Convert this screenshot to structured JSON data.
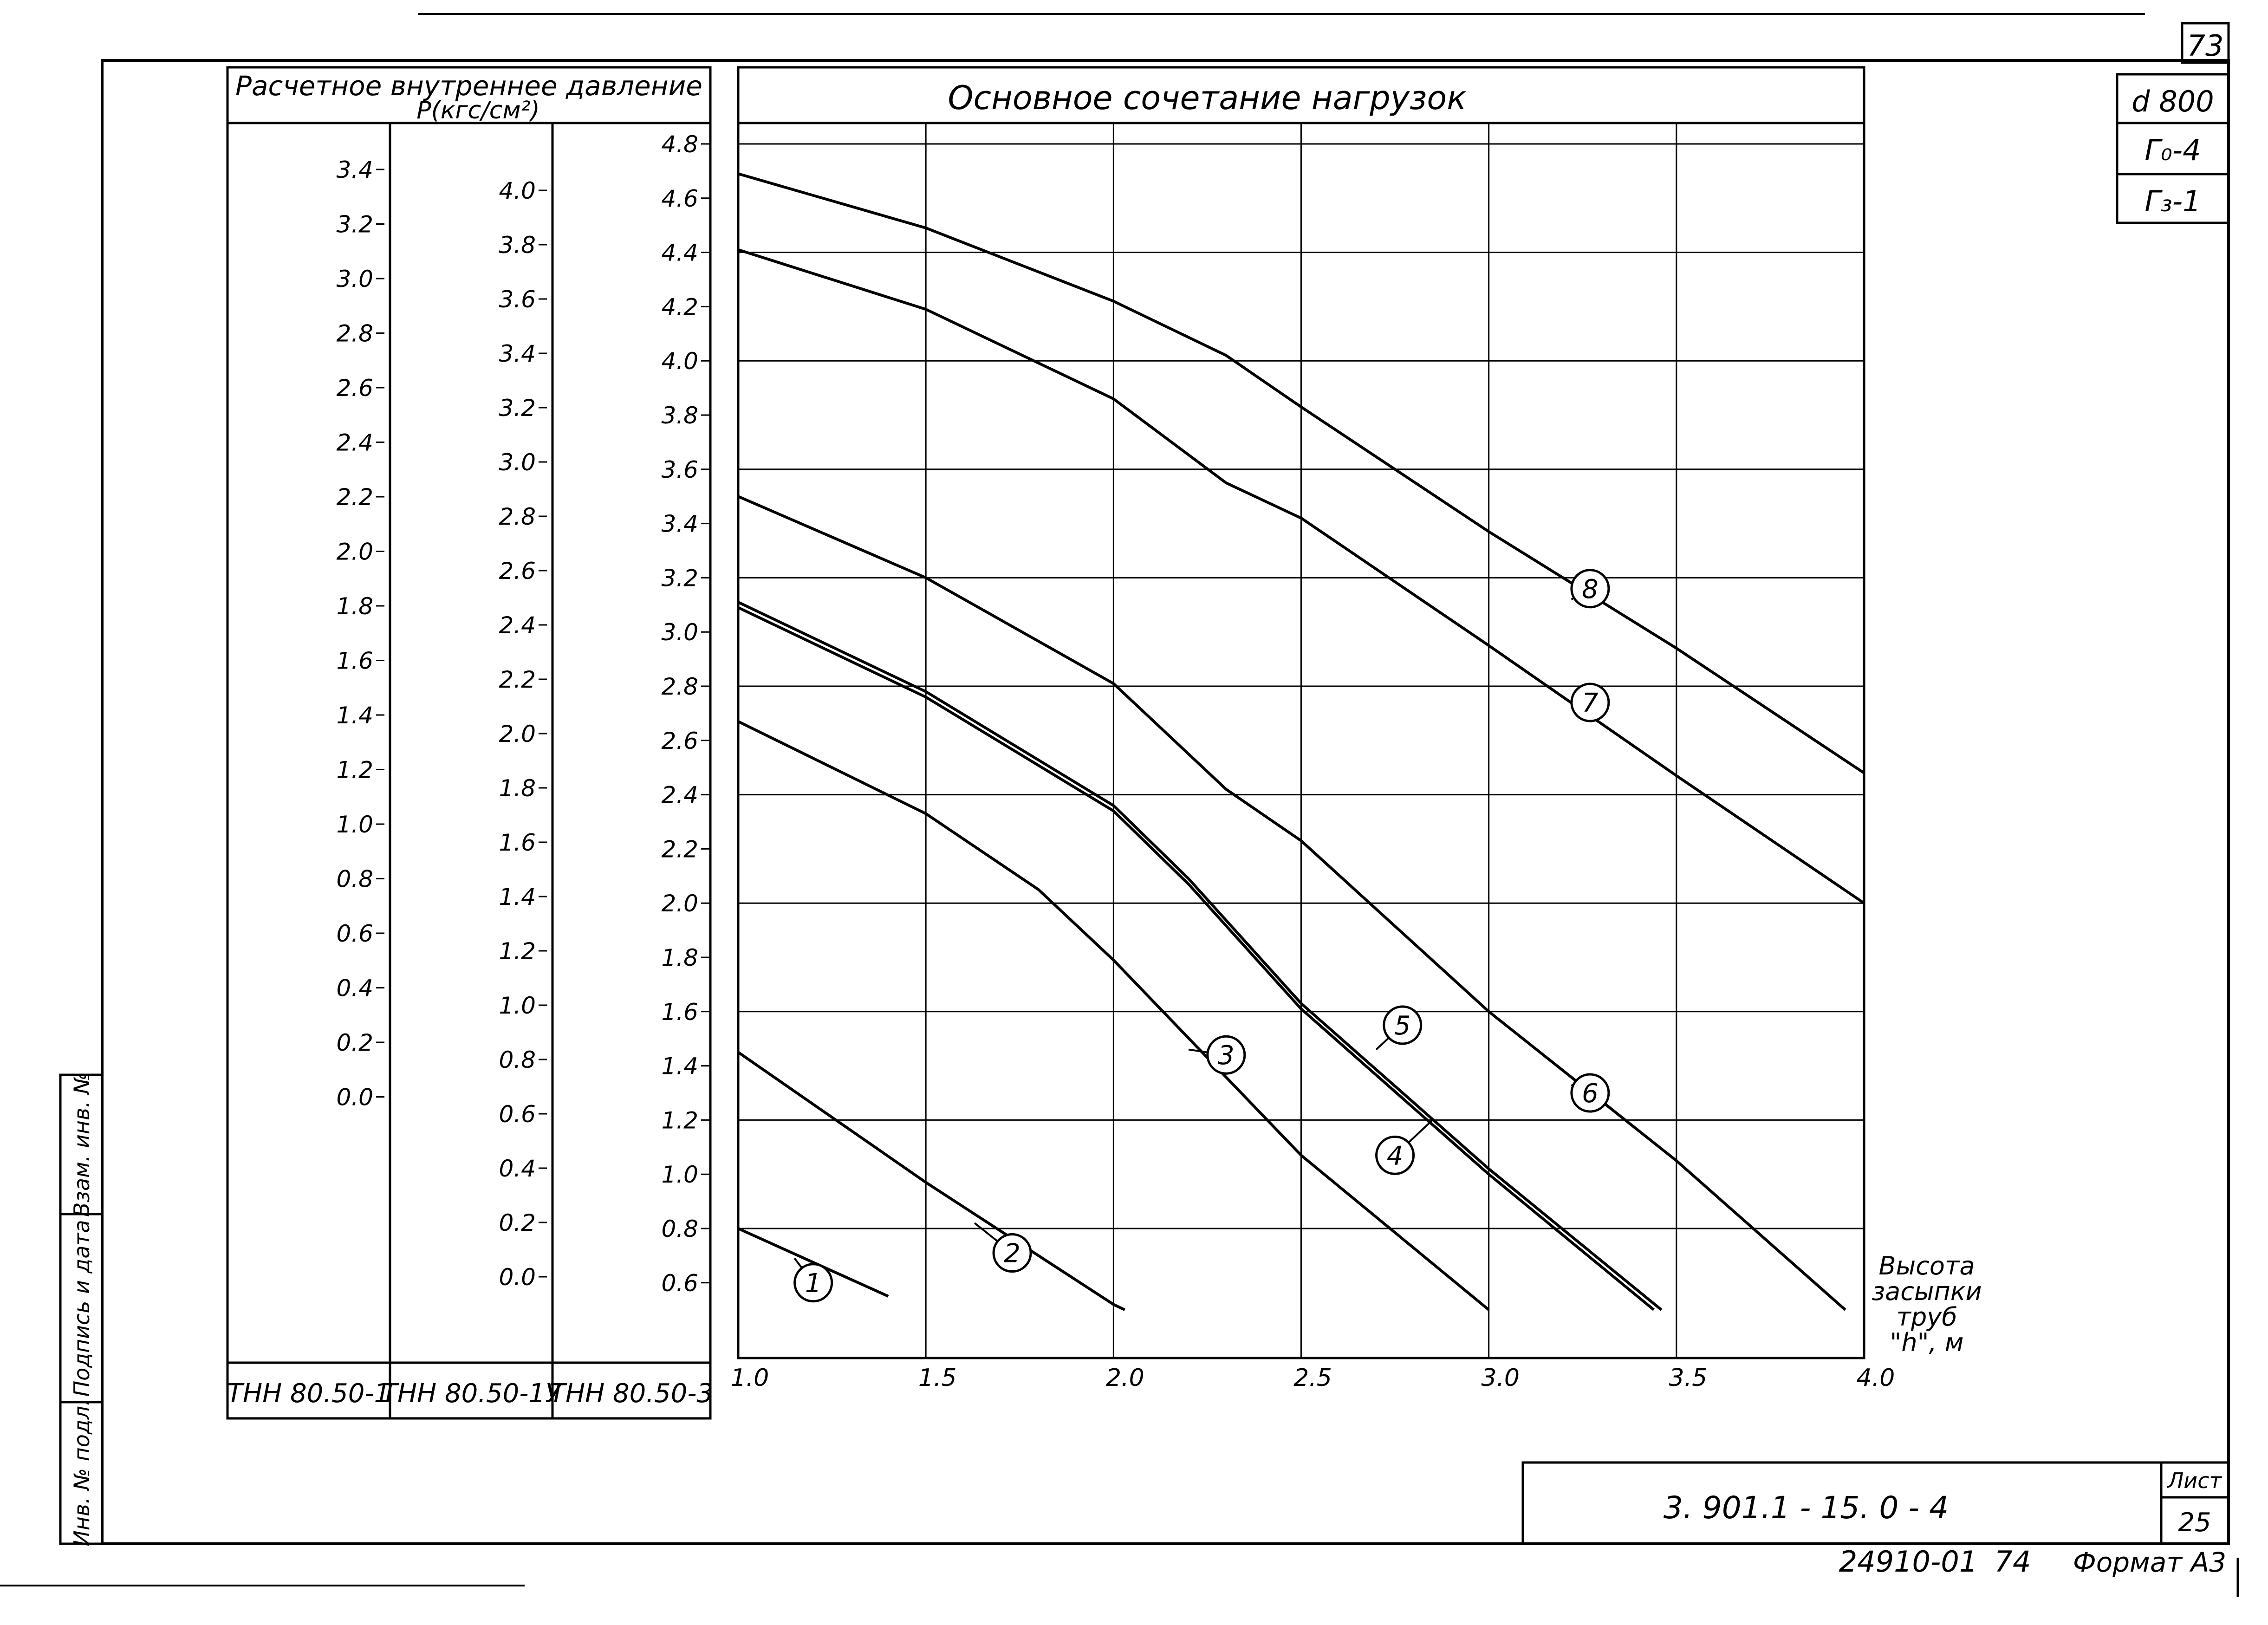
{
  "sheet": {
    "page_number": "73",
    "stamp": [
      "d 800",
      "Г₀-4",
      "Г₃-1"
    ],
    "doc_code": "3. 901.1 - 15. 0 - 4",
    "list_label": "Лист",
    "list_number": "25",
    "archive_code": "24910-01",
    "archive_num": "74",
    "format": "Формат А3",
    "side_labels": [
      "Инв. № подл.",
      "Подпись и дата",
      "Взам. инв. №"
    ]
  },
  "scale_panel": {
    "title_line1": "Расчетное внутреннее давление",
    "title_line2": "P(кгс/см²)",
    "columns": [
      {
        "label": "ТНН 80.50-1",
        "ticks": [
          "3.4",
          "3.2",
          "3.0",
          "2.8",
          "2.6",
          "2.4",
          "2.2",
          "2.0",
          "1.8",
          "1.6",
          "1.4",
          "1.2",
          "1.0",
          "0.8",
          "0.6",
          "0.4",
          "0.2",
          "0.0"
        ]
      },
      {
        "label": "ТНН 80.50-1У",
        "ticks": [
          "4.0",
          "3.8",
          "3.6",
          "3.4",
          "3.2",
          "3.0",
          "2.8",
          "2.6",
          "2.4",
          "2.2",
          "2.0",
          "1.8",
          "1.6",
          "1.4",
          "1.2",
          "1.0",
          "0.8",
          "0.6",
          "0.4",
          "0.2",
          "0.0"
        ]
      },
      {
        "label": "ТНН 80.50-3",
        "ticks": [
          "4.8",
          "4.6",
          "4.4",
          "4.2",
          "4.0",
          "3.8",
          "3.6",
          "3.4",
          "3.2",
          "3.0",
          "2.8",
          "2.6",
          "2.4",
          "2.2",
          "2.0",
          "1.8",
          "1.6",
          "1.4",
          "1.2",
          "1.0",
          "0.8",
          "0.6"
        ]
      }
    ]
  },
  "chart_data": {
    "type": "line",
    "title": "Основное сочетание нагрузок",
    "xlabel": "Высота засыпки труб \"h\", м",
    "xlabel_lines": [
      "Высота",
      "засыпки",
      "труб",
      "\"h\", м"
    ],
    "x_ticks": [
      "1.0",
      "1.5",
      "2.0",
      "2.5",
      "3.0",
      "3.5",
      "4.0"
    ],
    "xlim": [
      1.0,
      4.0
    ],
    "ylim": [
      0.5,
      4.9
    ],
    "y_reference": "ТНН 80.50-3 scale",
    "grid": true,
    "series": [
      {
        "name": "1",
        "x": [
          1.0,
          1.4
        ],
        "y": [
          0.8,
          0.55
        ]
      },
      {
        "name": "2",
        "x": [
          1.0,
          1.5,
          2.0,
          2.03
        ],
        "y": [
          1.45,
          0.97,
          0.52,
          0.5
        ]
      },
      {
        "name": "3",
        "x": [
          1.0,
          1.5,
          1.8,
          2.0,
          2.5,
          3.0
        ],
        "y": [
          2.67,
          2.33,
          2.05,
          1.79,
          1.07,
          0.5
        ]
      },
      {
        "name": "4",
        "x": [
          1.0,
          1.5,
          2.0,
          2.2,
          2.5,
          3.0,
          3.44
        ],
        "y": [
          3.09,
          2.76,
          2.34,
          2.07,
          1.61,
          1.0,
          0.5
        ]
      },
      {
        "name": "5",
        "x": [
          1.0,
          1.5,
          2.0,
          2.2,
          2.5,
          3.0,
          3.46
        ],
        "y": [
          3.11,
          2.78,
          2.36,
          2.09,
          1.63,
          1.02,
          0.5
        ]
      },
      {
        "name": "6",
        "x": [
          1.0,
          1.5,
          2.0,
          2.3,
          2.5,
          3.0,
          3.5,
          3.95
        ],
        "y": [
          3.5,
          3.2,
          2.81,
          2.42,
          2.23,
          1.6,
          1.05,
          0.5
        ]
      },
      {
        "name": "7",
        "x": [
          1.0,
          1.5,
          2.0,
          2.3,
          2.5,
          3.0,
          3.5,
          4.0
        ],
        "y": [
          4.41,
          4.19,
          3.86,
          3.55,
          3.42,
          2.95,
          2.47,
          2.0
        ]
      },
      {
        "name": "8",
        "x": [
          1.0,
          1.5,
          2.0,
          2.3,
          2.5,
          3.0,
          3.5,
          4.0
        ],
        "y": [
          4.69,
          4.49,
          4.22,
          4.02,
          3.83,
          3.37,
          2.94,
          2.48
        ]
      }
    ],
    "curve_labels": [
      {
        "name": "1",
        "at": [
          1.2,
          0.6
        ],
        "leader": [
          1.15,
          0.69
        ]
      },
      {
        "name": "2",
        "at": [
          1.73,
          0.71
        ],
        "leader": [
          1.63,
          0.82
        ]
      },
      {
        "name": "3",
        "at": [
          2.3,
          1.44
        ],
        "leader": [
          2.2,
          1.46
        ]
      },
      {
        "name": "4",
        "at": [
          2.75,
          1.07
        ],
        "leader": [
          2.85,
          1.2
        ]
      },
      {
        "name": "5",
        "at": [
          2.77,
          1.55
        ],
        "leader": [
          2.7,
          1.46
        ]
      },
      {
        "name": "6",
        "at": [
          3.27,
          1.3
        ],
        "leader": [
          3.22,
          1.33
        ]
      },
      {
        "name": "7",
        "at": [
          3.27,
          2.74
        ],
        "leader": [
          3.22,
          2.72
        ]
      },
      {
        "name": "8",
        "at": [
          3.27,
          3.16
        ],
        "leader": [
          3.22,
          3.12
        ]
      }
    ]
  }
}
